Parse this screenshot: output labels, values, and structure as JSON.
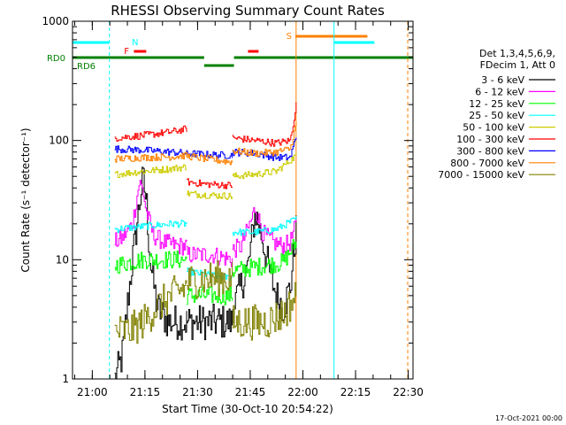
{
  "chart_data": {
    "type": "line",
    "title": "RHESSI Observing Summary Count Rates",
    "xlabel": "Start Time (30-Oct-10 20:54:22)",
    "ylabel": "Count Rate (s⁻¹ detector⁻¹)",
    "yscale": "log",
    "ylim": [
      1,
      1000
    ],
    "xlim_minutes": [
      0,
      97
    ],
    "x_ticks": [
      "21:00",
      "21:15",
      "21:30",
      "21:45",
      "22:00",
      "22:15",
      "22:30"
    ],
    "y_ticks": [
      "1",
      "10",
      "100",
      "1000"
    ],
    "legend_header": [
      "Det 1,3,4,5,6,9,",
      "FDecim 1, Att 0"
    ],
    "legend_position": "right",
    "series": [
      {
        "name": "3 - 6 keV",
        "color": "#000000",
        "segments": [
          {
            "x": [
              12,
              14,
              15.5,
              17,
              19,
              20,
              21,
              22,
              24,
              27,
              30,
              32.5
            ],
            "y": [
              1,
              1.5,
              4,
              10,
              30,
              48,
              30,
              10,
              4,
              3,
              3,
              3
            ]
          },
          {
            "x": [
              32.5,
              35,
              38,
              41,
              44,
              45.5
            ],
            "y": [
              3,
              3,
              3,
              3,
              3,
              3
            ]
          },
          {
            "x": [
              45.5,
              47,
              50,
              52,
              54,
              56,
              58,
              60,
              62,
              63.7
            ],
            "y": [
              4,
              5,
              9,
              25,
              15,
              8,
              5,
              4,
              6,
              18
            ]
          }
        ]
      },
      {
        "name": "6 - 12 keV",
        "color": "#ff00ff",
        "segments": [
          {
            "x": [
              12,
              14,
              17,
              19,
              20,
              21,
              23,
              26,
              30,
              32.5
            ],
            "y": [
              14,
              15,
              20,
              45,
              38,
              25,
              16,
              14,
              13,
              13
            ]
          },
          {
            "x": [
              32.5,
              36,
              40,
              45.5
            ],
            "y": [
              11,
              11,
              11,
              10
            ]
          },
          {
            "x": [
              45.5,
              48,
              51,
              52,
              54,
              57,
              60,
              62,
              63.7
            ],
            "y": [
              12,
              13,
              22,
              28,
              17,
              14,
              13,
              14,
              20
            ]
          }
        ]
      },
      {
        "name": "12 - 25 keV",
        "color": "#00ff00",
        "segments": [
          {
            "x": [
              12,
              16,
              20,
              24,
              28,
              32.5
            ],
            "y": [
              9,
              9.5,
              10,
              10,
              10,
              10
            ]
          },
          {
            "x": [
              32.5,
              38,
              45.5
            ],
            "y": [
              5,
              5,
              5
            ]
          },
          {
            "x": [
              45.5,
              50,
              55,
              60,
              63.7
            ],
            "y": [
              8,
              8.5,
              9,
              9.5,
              14
            ]
          }
        ]
      },
      {
        "name": "25 - 50 keV",
        "color": "#00ffff",
        "segments": [
          {
            "x": [
              12,
              20,
              28,
              32.5
            ],
            "y": [
              18,
              19,
              20,
              20
            ]
          },
          {
            "x": [
              32.5,
              38,
              45.5
            ],
            "y": [
              8,
              7.5,
              7
            ]
          },
          {
            "x": [
              45.5,
              52,
              58,
              63.7
            ],
            "y": [
              17,
              17,
              18,
              22
            ]
          }
        ]
      },
      {
        "name": "50 - 100 keV",
        "color": "#cccc00",
        "segments": [
          {
            "x": [
              12,
              20,
              28,
              32.5
            ],
            "y": [
              52,
              55,
              58,
              60
            ]
          },
          {
            "x": [
              32.5,
              38,
              45.5
            ],
            "y": [
              36,
              35,
              34
            ]
          },
          {
            "x": [
              45.5,
              52,
              58,
              63.7
            ],
            "y": [
              50,
              52,
              55,
              75
            ]
          }
        ]
      },
      {
        "name": "100 - 300 keV",
        "color": "#ff0000",
        "segments": [
          {
            "x": [
              12,
              20,
              28,
              32.5
            ],
            "y": [
              105,
              110,
              118,
              125
            ]
          },
          {
            "x": [
              32.5,
              38,
              45.5
            ],
            "y": [
              45,
              43,
              42
            ]
          },
          {
            "x": [
              45.5,
              52,
              58,
              62,
              63.7
            ],
            "y": [
              105,
              100,
              95,
              100,
              200
            ]
          }
        ]
      },
      {
        "name": "300 - 800 keV",
        "color": "#0000ff",
        "segments": [
          {
            "x": [
              12,
              20,
              28,
              32.5
            ],
            "y": [
              85,
              83,
              80,
              78
            ]
          },
          {
            "x": [
              32.5,
              38,
              45.5
            ],
            "y": [
              78,
              76,
              75
            ]
          },
          {
            "x": [
              45.5,
              52,
              58,
              62,
              63.7
            ],
            "y": [
              80,
              78,
              72,
              72,
              110
            ]
          }
        ]
      },
      {
        "name": "800 - 7000 keV",
        "color": "#ff8000",
        "segments": [
          {
            "x": [
              12,
              20,
              28,
              32.5
            ],
            "y": [
              70,
              72,
              73,
              75
            ]
          },
          {
            "x": [
              32.5,
              38,
              45.5
            ],
            "y": [
              74,
              70,
              66
            ]
          },
          {
            "x": [
              45.5,
              52,
              58,
              62,
              63.7
            ],
            "y": [
              82,
              78,
              80,
              85,
              140
            ]
          }
        ]
      },
      {
        "name": "7000 - 15000 keV",
        "color": "#808000",
        "segments": [
          {
            "x": [
              12,
              16,
              20,
              24,
              28,
              32.5
            ],
            "y": [
              2.5,
              2.5,
              3,
              4,
              5,
              6
            ]
          },
          {
            "x": [
              32.5,
              38,
              45.5
            ],
            "y": [
              6.5,
              7,
              7
            ]
          },
          {
            "x": [
              45.5,
              50,
              55,
              60,
              63.7
            ],
            "y": [
              3,
              3,
              3,
              3.5,
              5
            ]
          }
        ]
      }
    ],
    "flags": [
      {
        "label": "N",
        "color": "#00ffff",
        "bars": [
          [
            0,
            10.5
          ],
          [
            74.5,
            86
          ]
        ],
        "level": 1
      },
      {
        "label": "F",
        "color": "#ff0000",
        "bars": [
          [
            17.5,
            21
          ],
          [
            50,
            53
          ]
        ],
        "level": 2
      },
      {
        "label": "S",
        "color": "#ff8000",
        "bars": [
          [
            63.5,
            84
          ]
        ],
        "level": 0
      },
      {
        "label": "RD0",
        "color": "#008000",
        "bars": [
          [
            0,
            37.5
          ],
          [
            46,
            97
          ]
        ],
        "level": 3
      },
      {
        "label": "RD6",
        "color": "#008000",
        "bars": [
          [
            37.5,
            46
          ]
        ],
        "level": 4
      }
    ],
    "vlines": [
      {
        "x": 0,
        "color": "#00ffff",
        "dash": false
      },
      {
        "x": 10.5,
        "color": "#00ffff",
        "dash": true
      },
      {
        "x": 63.7,
        "color": "#ff8000",
        "dash": false
      },
      {
        "x": 74.5,
        "color": "#00ffff",
        "dash": false
      },
      {
        "x": 95.5,
        "color": "#ff8000",
        "dash": true
      },
      {
        "x": 97,
        "color": "#00ffff",
        "dash": true
      }
    ],
    "stamp": "17-Oct-2021 00:00"
  }
}
